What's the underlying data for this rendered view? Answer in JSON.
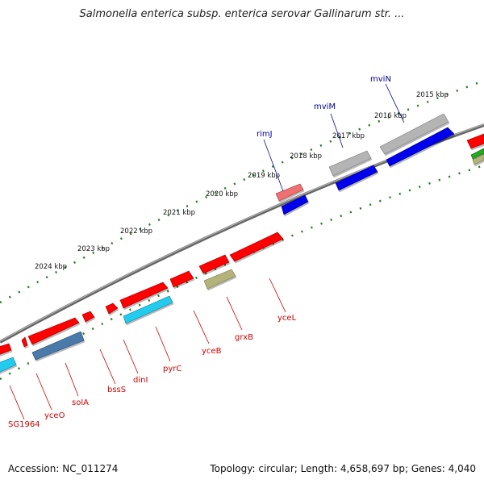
{
  "title": "Salmonella enterica subsp. enterica serovar Gallinarum str. ...",
  "footer": {
    "accession": "Accession: NC_011274",
    "topology": "Topology: circular; Length: 4,658,697 bp; Genes: 4,040"
  },
  "colors": {
    "backbone": "#7a7a7a",
    "tick": "#1f7a1f",
    "gene_red": "#ff0000",
    "gene_blue": "#0000ee",
    "gene_gray": "#b4b4b4",
    "gene_pink": "#ee7070",
    "gene_cyan": "#22ccee",
    "gene_steel": "#4a7aaa",
    "gene_olive": "#b4b47a",
    "label_red": "#cc0000",
    "label_blue": "#000099"
  },
  "kbp_labels": [
    "2015 kbp",
    "2016 kbp",
    "2017 kbp",
    "2018 kbp",
    "2019 kbp",
    "2020 kbp",
    "2021 kbp",
    "2022 kbp",
    "2023 kbp",
    "2024 kbp"
  ],
  "gene_labels": {
    "top": [
      "mviN",
      "mviM",
      "rimJ"
    ],
    "bottom": [
      "SG1964",
      "yceO",
      "solA",
      "bssS",
      "dinI",
      "pyrC",
      "yceB",
      "grxB",
      "yceL"
    ]
  }
}
